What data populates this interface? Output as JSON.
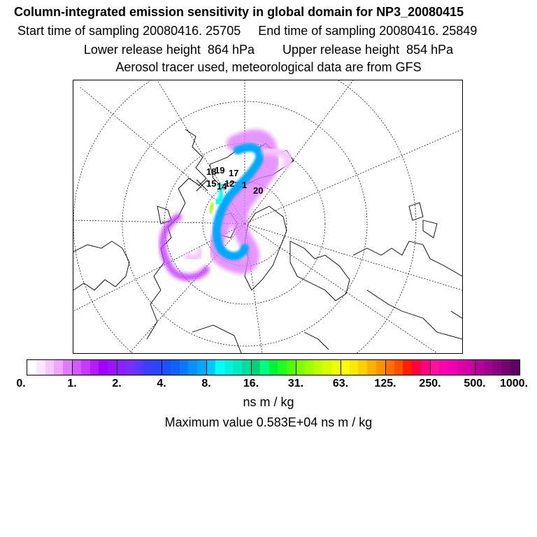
{
  "header": {
    "lines": [
      "Column-integrated emission sensitivity in global domain for NP3_20080415",
      "Start time of sampling 20080416. 25705     End time of sampling 20080416. 25849",
      "Lower release height  864 hPa        Upper release height  854 hPa",
      "Aerosol tracer used, meteorological data are from GFS"
    ]
  },
  "map": {
    "projection": "north-polar-stereographic",
    "marker_labels": [
      "18",
      "19",
      "15",
      "17",
      "20",
      "14",
      "1",
      "12"
    ],
    "colors": {
      "coast": "#000000",
      "grid": "#000000"
    }
  },
  "legend": {
    "ticks": [
      "0.",
      "1.",
      "2.",
      "4.",
      "8.",
      "16.",
      "31.",
      "63.",
      "125.",
      "250.",
      "500.",
      "1000."
    ],
    "unit": "ns m / kg",
    "max_text": "Maximum value  0.583E+04 ns m / kg",
    "colors": [
      "#ffffff",
      "#fbe6ff",
      "#f5c8ff",
      "#eea6ff",
      "#e07bff",
      "#d05cff",
      "#c43bff",
      "#b21cff",
      "#a000ff",
      "#9a12ff",
      "#8a22ff",
      "#7530ff",
      "#5a38ff",
      "#3a3fff",
      "#2a44ff",
      "#1a50ff",
      "#1060ff",
      "#0a78ff",
      "#0a90ff",
      "#00a8ff",
      "#00c8ff",
      "#00ffff",
      "#00f2dd",
      "#00e8c0",
      "#00dd9c",
      "#00d27a",
      "#00ff80",
      "#00f040",
      "#20ff20",
      "#50ff00",
      "#80ff00",
      "#a0ff00",
      "#c0ff00",
      "#d8ff00",
      "#eeff00",
      "#ffff00",
      "#ffe800",
      "#ffd000",
      "#ffb000",
      "#ff9000",
      "#ff7000",
      "#ff5000",
      "#ff2000",
      "#ff0040",
      "#ff0080",
      "#ff10a0",
      "#ff00b0",
      "#ee00b0",
      "#dd00a8",
      "#c800a0",
      "#b40098",
      "#a00090",
      "#8a0080",
      "#740070",
      "#5c0060"
    ]
  }
}
